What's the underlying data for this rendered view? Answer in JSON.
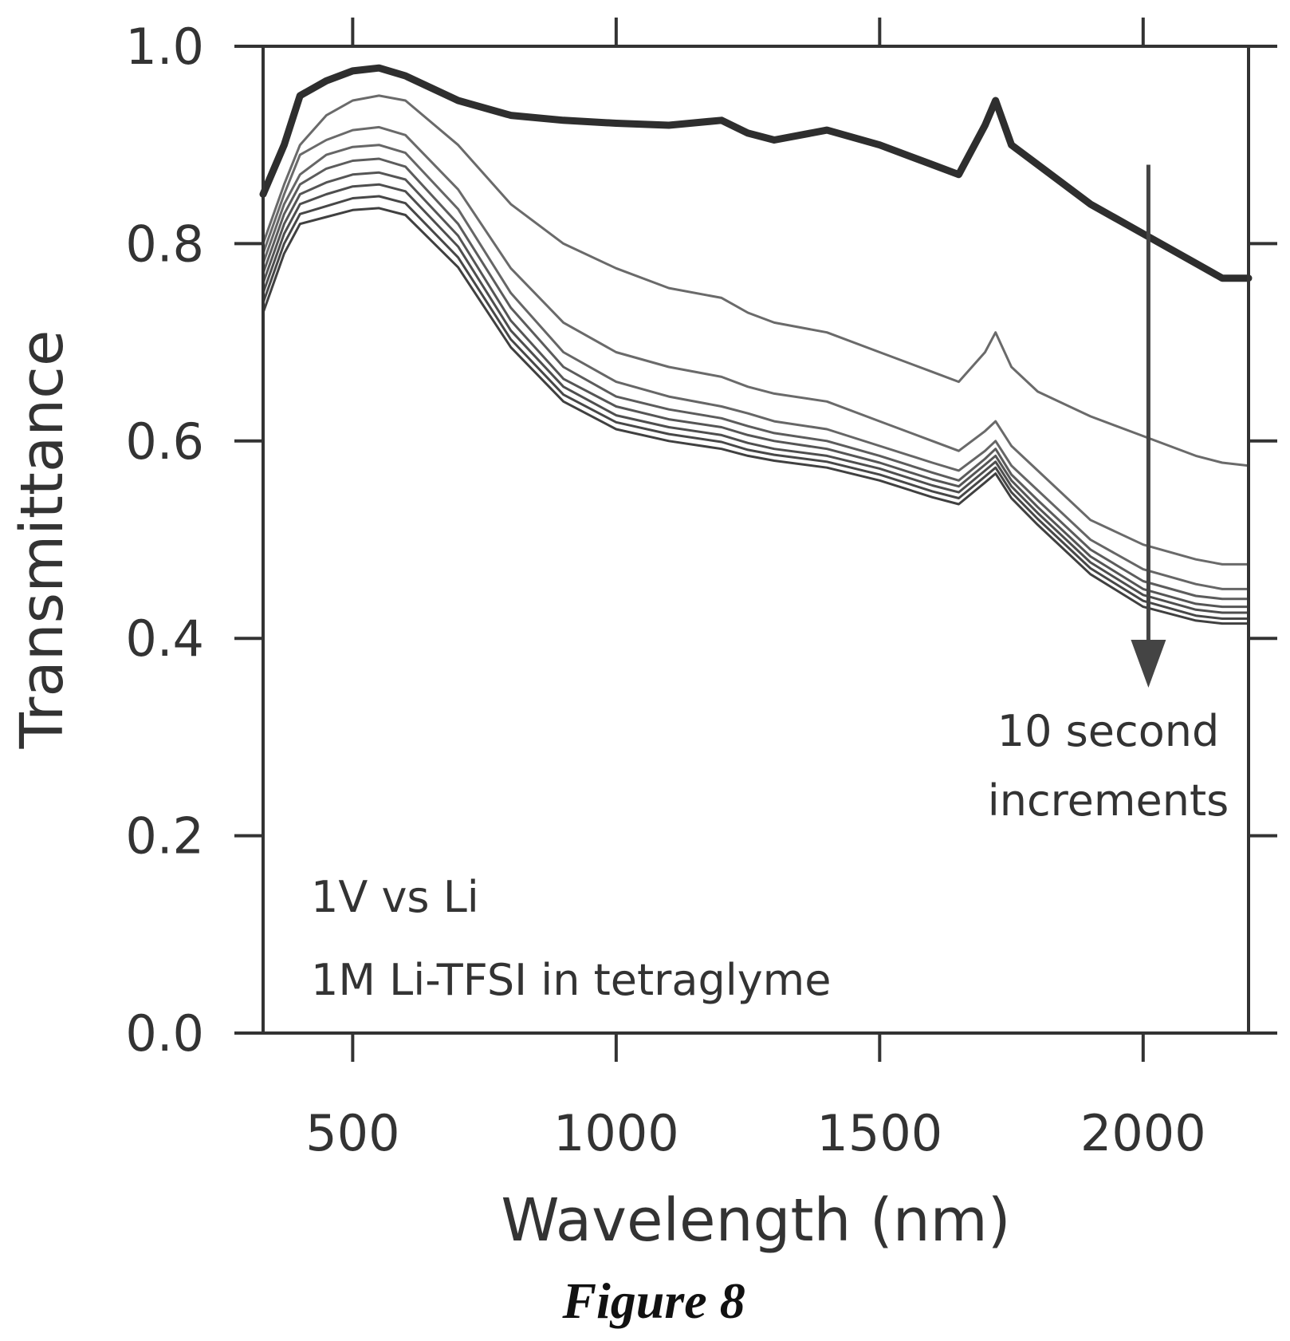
{
  "chart_data": {
    "type": "line",
    "xlabel": "Wavelength (nm)",
    "ylabel": "Transmittance",
    "xlim": [
      330,
      2200
    ],
    "ylim": [
      0.0,
      1.0
    ],
    "xticks": [
      500,
      1000,
      1500,
      2000
    ],
    "yticks": [
      0.0,
      0.2,
      0.4,
      0.6,
      0.8,
      1.0
    ],
    "xtick_labels": [
      "500",
      "1000",
      "1500",
      "2000"
    ],
    "ytick_labels": [
      "0.0",
      "0.2",
      "0.4",
      "0.6",
      "0.8",
      "1.0"
    ],
    "grid": false,
    "x": [
      330,
      370,
      400,
      450,
      500,
      550,
      600,
      700,
      800,
      900,
      1000,
      1100,
      1200,
      1250,
      1300,
      1400,
      1500,
      1600,
      1650,
      1700,
      1720,
      1750,
      1800,
      1900,
      2000,
      2100,
      2150,
      2200
    ],
    "series": [
      {
        "values": [
          0.85,
          0.9,
          0.95,
          0.965,
          0.975,
          0.978,
          0.97,
          0.945,
          0.93,
          0.925,
          0.922,
          0.92,
          0.925,
          0.912,
          0.905,
          0.915,
          0.9,
          0.88,
          0.87,
          0.92,
          0.945,
          0.9,
          0.88,
          0.84,
          0.81,
          0.78,
          0.765,
          0.765
        ],
        "color": "#2e2e2e",
        "width": 9
      },
      {
        "values": [
          0.8,
          0.86,
          0.9,
          0.93,
          0.945,
          0.95,
          0.945,
          0.9,
          0.84,
          0.8,
          0.775,
          0.755,
          0.745,
          0.73,
          0.72,
          0.71,
          0.69,
          0.67,
          0.66,
          0.69,
          0.71,
          0.675,
          0.65,
          0.625,
          0.605,
          0.585,
          0.578,
          0.575
        ],
        "color": "#6a6a6a",
        "width": 3
      },
      {
        "values": [
          0.79,
          0.85,
          0.89,
          0.905,
          0.915,
          0.918,
          0.91,
          0.855,
          0.775,
          0.72,
          0.69,
          0.675,
          0.665,
          0.655,
          0.648,
          0.64,
          0.62,
          0.6,
          0.59,
          0.61,
          0.62,
          0.595,
          0.57,
          0.52,
          0.495,
          0.48,
          0.475,
          0.475
        ],
        "color": "#6a6a6a",
        "width": 3
      },
      {
        "values": [
          0.78,
          0.84,
          0.87,
          0.89,
          0.898,
          0.9,
          0.892,
          0.835,
          0.75,
          0.69,
          0.66,
          0.645,
          0.635,
          0.628,
          0.62,
          0.612,
          0.595,
          0.578,
          0.57,
          0.59,
          0.6,
          0.575,
          0.55,
          0.5,
          0.47,
          0.455,
          0.45,
          0.45
        ],
        "color": "#666666",
        "width": 3
      },
      {
        "values": [
          0.77,
          0.83,
          0.86,
          0.876,
          0.884,
          0.886,
          0.878,
          0.82,
          0.735,
          0.675,
          0.645,
          0.632,
          0.623,
          0.615,
          0.608,
          0.6,
          0.585,
          0.568,
          0.56,
          0.582,
          0.592,
          0.566,
          0.54,
          0.49,
          0.458,
          0.443,
          0.44,
          0.44
        ],
        "color": "#5c5c5c",
        "width": 3
      },
      {
        "values": [
          0.76,
          0.82,
          0.85,
          0.862,
          0.87,
          0.872,
          0.865,
          0.808,
          0.722,
          0.663,
          0.635,
          0.622,
          0.614,
          0.606,
          0.6,
          0.592,
          0.578,
          0.561,
          0.554,
          0.576,
          0.585,
          0.56,
          0.533,
          0.483,
          0.45,
          0.435,
          0.432,
          0.432
        ],
        "color": "#555555",
        "width": 3
      },
      {
        "values": [
          0.75,
          0.81,
          0.84,
          0.85,
          0.858,
          0.86,
          0.853,
          0.797,
          0.712,
          0.655,
          0.626,
          0.614,
          0.606,
          0.598,
          0.592,
          0.585,
          0.572,
          0.555,
          0.548,
          0.57,
          0.579,
          0.554,
          0.527,
          0.477,
          0.444,
          0.429,
          0.426,
          0.426
        ],
        "color": "#4e4e4e",
        "width": 3
      },
      {
        "values": [
          0.74,
          0.8,
          0.83,
          0.838,
          0.846,
          0.848,
          0.841,
          0.786,
          0.703,
          0.647,
          0.619,
          0.607,
          0.599,
          0.591,
          0.586,
          0.579,
          0.566,
          0.549,
          0.542,
          0.564,
          0.573,
          0.548,
          0.521,
          0.471,
          0.438,
          0.423,
          0.42,
          0.42
        ],
        "color": "#474747",
        "width": 3
      },
      {
        "values": [
          0.73,
          0.79,
          0.82,
          0.827,
          0.834,
          0.836,
          0.829,
          0.776,
          0.695,
          0.64,
          0.612,
          0.6,
          0.592,
          0.585,
          0.58,
          0.573,
          0.56,
          0.543,
          0.536,
          0.558,
          0.567,
          0.542,
          0.515,
          0.465,
          0.432,
          0.418,
          0.415,
          0.415
        ],
        "color": "#404040",
        "width": 3
      }
    ],
    "annotations": {
      "arrow_text_line1": "10 second",
      "arrow_text_line2": "increments",
      "condition_line1": "1V vs Li",
      "condition_line2": "1M Li-TFSI in tetraglyme"
    },
    "arrow": {
      "x": 2010,
      "y_start": 0.88,
      "y_end": 0.35
    }
  },
  "caption": "Figure 8"
}
